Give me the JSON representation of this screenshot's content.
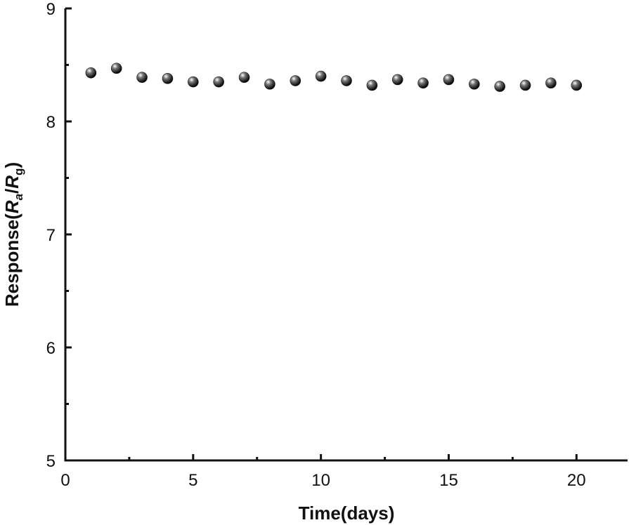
{
  "chart_data": {
    "type": "scatter",
    "x_label": "Time(days)",
    "y_label": [
      "Response(",
      "R",
      "a",
      "/",
      "R",
      "g",
      ")"
    ],
    "series": [
      {
        "color": "#222222",
        "x": [
          1,
          2,
          3,
          4,
          5,
          6,
          7,
          8,
          9,
          10,
          11,
          12,
          13,
          14,
          15,
          16,
          17,
          18,
          19,
          20
        ],
        "values": [
          8.43,
          8.47,
          8.39,
          8.38,
          8.35,
          8.35,
          8.39,
          8.33,
          8.36,
          8.4,
          8.36,
          8.32,
          8.37,
          8.34,
          8.37,
          8.33,
          8.31,
          8.32,
          8.34,
          8.32
        ]
      }
    ],
    "xlim": [
      0,
      22
    ],
    "xticks": [
      0,
      5,
      10,
      15,
      20
    ],
    "ylim": [
      5,
      9
    ],
    "yticks": [
      5,
      6,
      7,
      8,
      9
    ]
  }
}
